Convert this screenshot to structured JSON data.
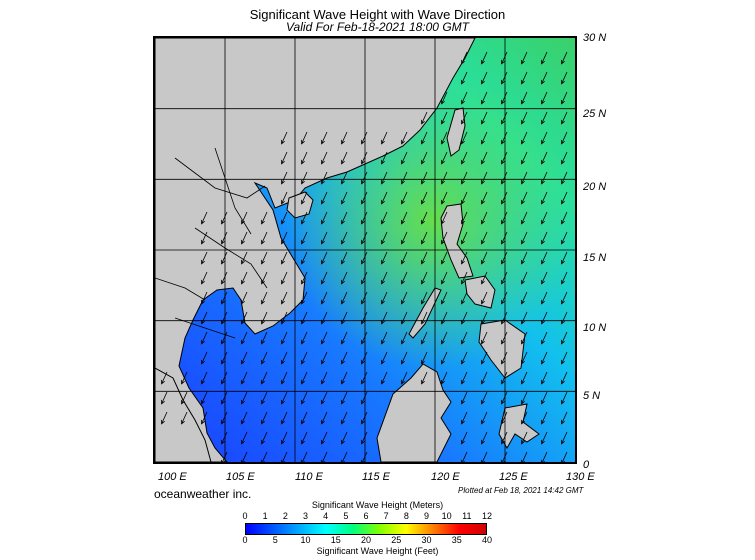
{
  "header": {
    "title": "Significant Wave Height with Wave Direction",
    "subtitle": "Valid For Feb-18-2021 18:00 GMT"
  },
  "map": {
    "lat_labels": [
      "30 N",
      "25 N",
      "20 N",
      "15 N",
      "10 N",
      "5 N",
      "0"
    ],
    "lon_labels": [
      "100 E",
      "105 E",
      "110 E",
      "115 E",
      "120 E",
      "125 E",
      "130 E"
    ],
    "lat_range": [
      0,
      30
    ],
    "lon_range": [
      100,
      130
    ],
    "land_color": "#c8c8c8",
    "wave_direction": "arrows pointing to the southwest"
  },
  "footer": {
    "credit": "oceanweather inc.",
    "plotted": "Plotted at Feb 18, 2021 14:42 GMT"
  },
  "colorbar": {
    "title_meters": "Significant Wave Height (Meters)",
    "title_feet": "Significant Wave Height (Feet)",
    "meters_ticks": [
      "0",
      "1",
      "2",
      "3",
      "4",
      "5",
      "6",
      "7",
      "8",
      "9",
      "10",
      "11",
      "12"
    ],
    "feet_ticks": [
      "0",
      "5",
      "10",
      "15",
      "20",
      "25",
      "30",
      "35",
      "40"
    ],
    "colors": [
      "#0000ff",
      "#0055ff",
      "#00aaff",
      "#00ffff",
      "#00ff80",
      "#80ff00",
      "#ffff00",
      "#ff8000",
      "#ff0000",
      "#d00000"
    ]
  }
}
